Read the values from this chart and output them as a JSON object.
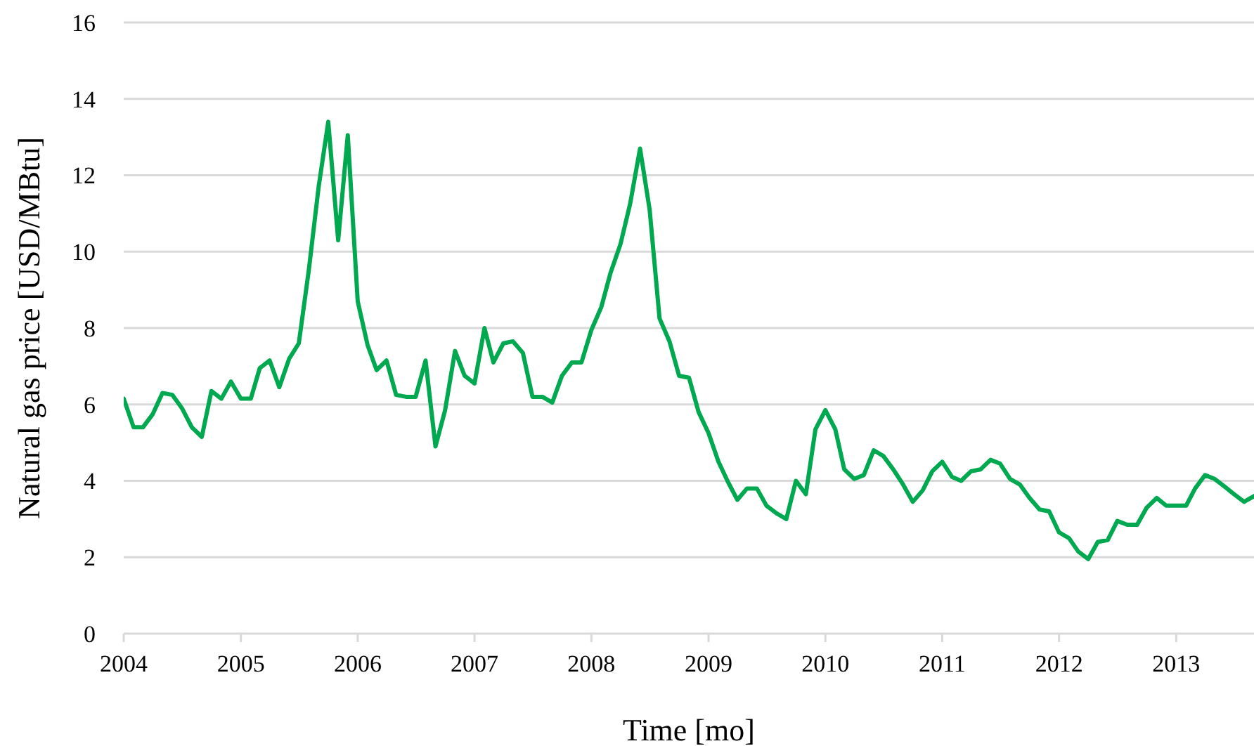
{
  "chart_data": {
    "type": "line",
    "xlabel": "Time [mo]",
    "ylabel": "Natural gas price [USD/MBtu]",
    "x": [
      "2004-01",
      "2004-02",
      "2004-03",
      "2004-04",
      "2004-05",
      "2004-06",
      "2004-07",
      "2004-08",
      "2004-09",
      "2004-10",
      "2004-11",
      "2004-12",
      "2005-01",
      "2005-02",
      "2005-03",
      "2005-04",
      "2005-05",
      "2005-06",
      "2005-07",
      "2005-08",
      "2005-09",
      "2005-10",
      "2005-11",
      "2005-12",
      "2006-01",
      "2006-02",
      "2006-03",
      "2006-04",
      "2006-05",
      "2006-06",
      "2006-07",
      "2006-08",
      "2006-09",
      "2006-10",
      "2006-11",
      "2006-12",
      "2007-01",
      "2007-02",
      "2007-03",
      "2007-04",
      "2007-05",
      "2007-06",
      "2007-07",
      "2007-08",
      "2007-09",
      "2007-10",
      "2007-11",
      "2007-12",
      "2008-01",
      "2008-02",
      "2008-03",
      "2008-04",
      "2008-05",
      "2008-06",
      "2008-07",
      "2008-08",
      "2008-09",
      "2008-10",
      "2008-11",
      "2008-12",
      "2009-01",
      "2009-02",
      "2009-03",
      "2009-04",
      "2009-05",
      "2009-06",
      "2009-07",
      "2009-08",
      "2009-09",
      "2009-10",
      "2009-11",
      "2009-12",
      "2010-01",
      "2010-02",
      "2010-03",
      "2010-04",
      "2010-05",
      "2010-06",
      "2010-07",
      "2010-08",
      "2010-09",
      "2010-10",
      "2010-11",
      "2010-12",
      "2011-01",
      "2011-02",
      "2011-03",
      "2011-04",
      "2011-05",
      "2011-06",
      "2011-07",
      "2011-08",
      "2011-09",
      "2011-10",
      "2011-11",
      "2011-12",
      "2012-01",
      "2012-02",
      "2012-03",
      "2012-04",
      "2012-05",
      "2012-06",
      "2012-07",
      "2012-08",
      "2012-09",
      "2012-10",
      "2012-11",
      "2012-12",
      "2013-01",
      "2013-02",
      "2013-03",
      "2013-04",
      "2013-05",
      "2013-06",
      "2013-07",
      "2013-08",
      "2013-09"
    ],
    "series": [
      {
        "color": "#00a84f",
        "values": [
          6.15,
          5.4,
          5.4,
          5.75,
          6.3,
          6.25,
          5.9,
          5.4,
          5.15,
          6.35,
          6.15,
          6.6,
          6.15,
          6.15,
          6.95,
          7.15,
          6.45,
          7.2,
          7.6,
          9.5,
          11.7,
          13.4,
          10.3,
          13.05,
          8.7,
          7.55,
          6.9,
          7.15,
          6.25,
          6.2,
          6.2,
          7.15,
          4.9,
          5.85,
          7.4,
          6.75,
          6.55,
          8.0,
          7.1,
          7.6,
          7.65,
          7.35,
          6.2,
          6.2,
          6.05,
          6.75,
          7.1,
          7.1,
          7.95,
          8.55,
          9.45,
          10.2,
          11.25,
          12.7,
          11.1,
          8.25,
          7.65,
          6.75,
          6.7,
          5.8,
          5.25,
          4.5,
          4.0,
          3.5,
          3.8,
          3.8,
          3.35,
          3.15,
          3.0,
          4.0,
          3.65,
          5.35,
          5.85,
          5.35,
          4.3,
          4.05,
          4.15,
          4.8,
          4.65,
          4.3,
          3.9,
          3.45,
          3.75,
          4.25,
          4.5,
          4.1,
          4.0,
          4.25,
          4.3,
          4.55,
          4.45,
          4.05,
          3.9,
          3.55,
          3.25,
          3.2,
          2.65,
          2.5,
          2.15,
          1.95,
          2.4,
          2.45,
          2.95,
          2.85,
          2.85,
          3.3,
          3.55,
          3.35,
          3.35,
          3.35,
          3.8,
          4.15,
          4.05,
          3.85,
          3.65,
          3.45,
          3.6
        ]
      }
    ],
    "xlim": [
      "2004-01",
      "2013-09"
    ],
    "xticks": [
      {
        "value": "2004",
        "label": "2004"
      },
      {
        "value": "2005",
        "label": "2005"
      },
      {
        "value": "2006",
        "label": "2006"
      },
      {
        "value": "2007",
        "label": "2007"
      },
      {
        "value": "2008",
        "label": "2008"
      },
      {
        "value": "2009",
        "label": "2009"
      },
      {
        "value": "2010",
        "label": "2010"
      },
      {
        "value": "2011",
        "label": "2011"
      },
      {
        "value": "2012",
        "label": "2012"
      },
      {
        "value": "2013",
        "label": "2013"
      }
    ],
    "ylim": [
      0,
      16
    ],
    "yticks": [
      0,
      2,
      4,
      6,
      8,
      10,
      12,
      14,
      16
    ],
    "grid": "y",
    "marker": "none",
    "line_style": "solid"
  }
}
